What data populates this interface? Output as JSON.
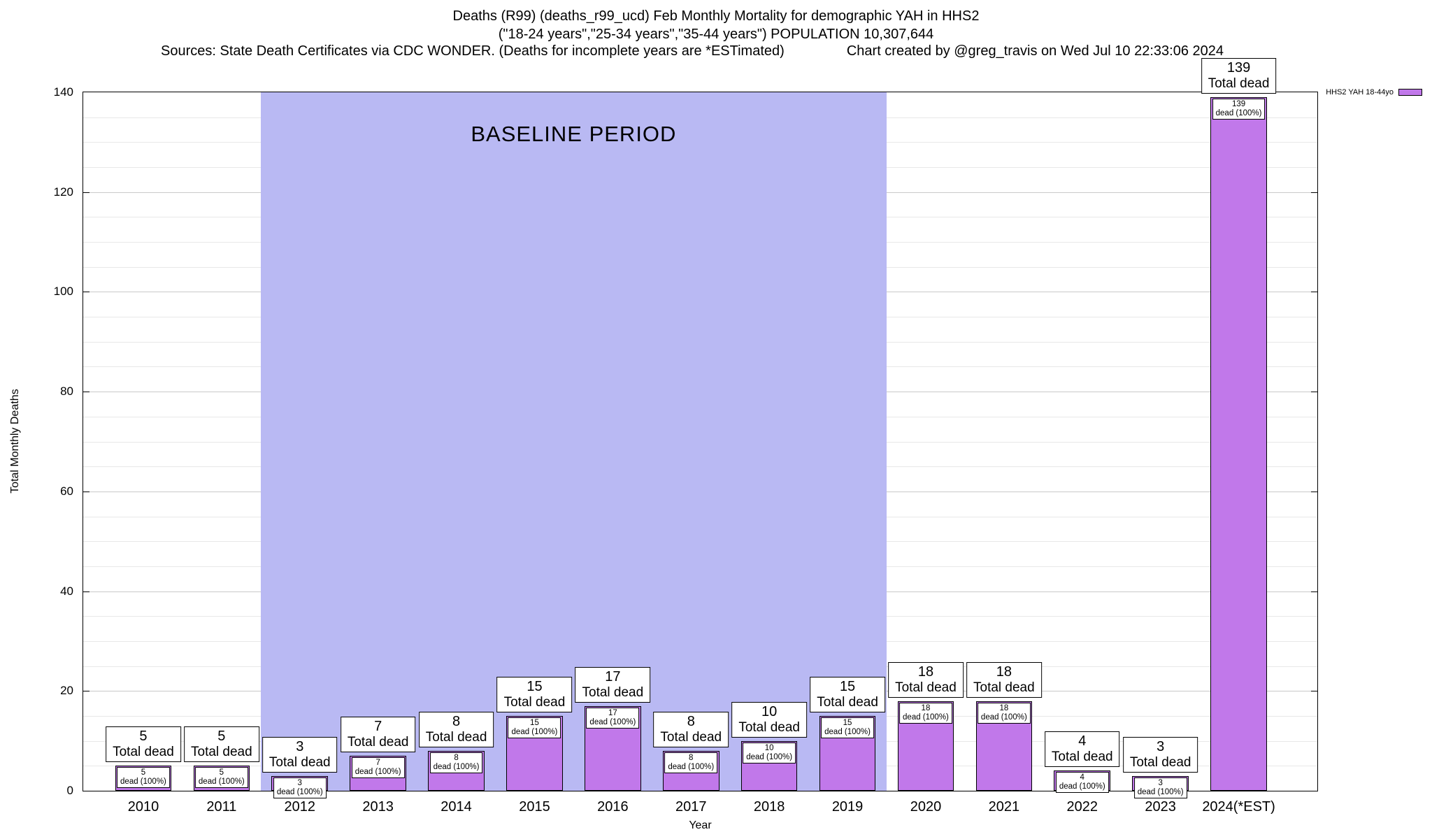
{
  "header": {
    "title_line1": "Deaths (R99) (deaths_r99_ucd) Feb Monthly Mortality for demographic YAH in HHS2",
    "title_line2": "(\"18-24 years\",\"25-34 years\",\"35-44 years\") POPULATION 10,307,644",
    "sources": "Sources: State Death Certificates via CDC WONDER. (Deaths for incomplete years are *ESTimated)",
    "credit": "Chart created by @greg_travis on Wed Jul 10 22:33:06 2024"
  },
  "legend": {
    "label": "HHS2 YAH 18-44yo",
    "swatch_color": "#c178ea"
  },
  "chart_data": {
    "type": "bar",
    "title": "Deaths (R99) (deaths_r99_ucd) Feb Monthly Mortality for demographic YAH in HHS2",
    "xlabel": "Year",
    "ylabel": "Total Monthly Deaths",
    "ylim": [
      0,
      140
    ],
    "ytick_step": 20,
    "minor_step": 5,
    "grid": true,
    "legend_position": "top-right",
    "categories": [
      "2010",
      "2011",
      "2012",
      "2013",
      "2014",
      "2015",
      "2016",
      "2017",
      "2018",
      "2019",
      "2020",
      "2021",
      "2022",
      "2023",
      "2024(*EST)"
    ],
    "values": [
      5,
      5,
      3,
      7,
      8,
      15,
      17,
      8,
      10,
      15,
      18,
      18,
      4,
      3,
      139
    ],
    "bar_label_suffix": "Total dead",
    "bar_sublabel_suffix": "dead (100%)",
    "bar_color": "#c178ea",
    "bar_border": "#000000",
    "baseline": {
      "label": "BASELINE PERIOD",
      "from_category": "2012",
      "to_category": "2019",
      "color": "#b9b9f3"
    }
  }
}
